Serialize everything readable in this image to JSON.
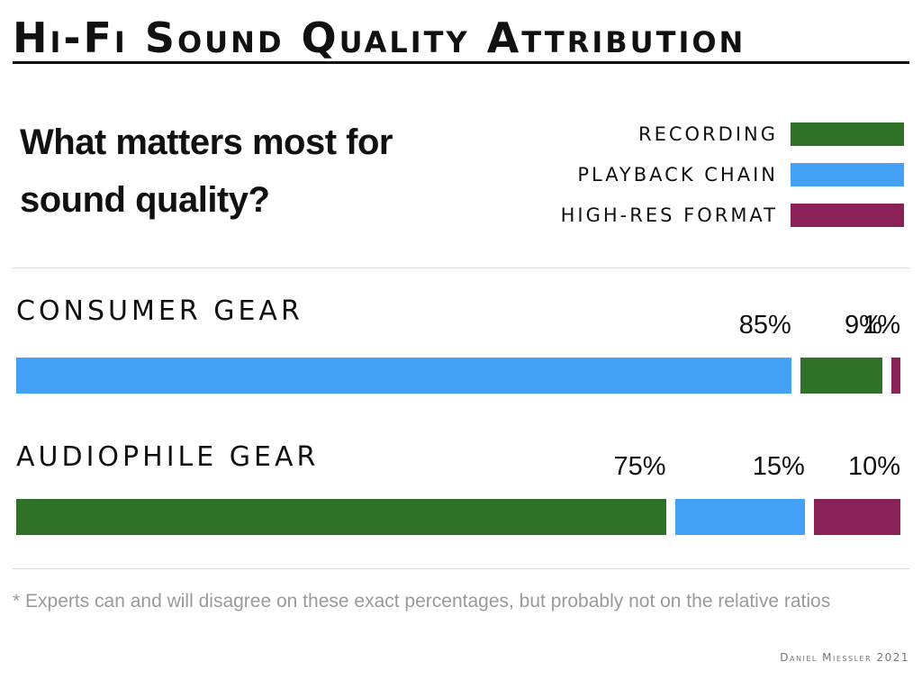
{
  "header": {
    "title": "Hi-Fi Sound Quality Attribution"
  },
  "question": "What matters most for sound quality?",
  "colors": {
    "recording": "#2e7127",
    "playback": "#45a1f5",
    "format": "#8b2257"
  },
  "chart_data": {
    "type": "bar",
    "stacked": true,
    "orientation": "horizontal",
    "legend": [
      {
        "name": "RECORDING",
        "color": "#2e7127"
      },
      {
        "name": "PLAYBACK CHAIN",
        "color": "#45a1f5"
      },
      {
        "name": "HIGH-RES FORMAT",
        "color": "#8b2257"
      }
    ],
    "legend_position": "top-right",
    "groups": [
      {
        "name": "CONSUMER GEAR",
        "segments": [
          {
            "series": "PLAYBACK CHAIN",
            "value": 85,
            "label": "85%",
            "color": "#45a1f5"
          },
          {
            "series": "RECORDING",
            "value": 9,
            "label": "9%",
            "color": "#2e7127"
          },
          {
            "series": "HIGH-RES FORMAT",
            "value": 1,
            "label": "1%",
            "color": "#8b2257"
          }
        ]
      },
      {
        "name": "AUDIOPHILE GEAR",
        "segments": [
          {
            "series": "RECORDING",
            "value": 75,
            "label": "75%",
            "color": "#2e7127"
          },
          {
            "series": "PLAYBACK CHAIN",
            "value": 15,
            "label": "15%",
            "color": "#45a1f5"
          },
          {
            "series": "HIGH-RES FORMAT",
            "value": 10,
            "label": "10%",
            "color": "#8b2257"
          }
        ]
      }
    ],
    "grid": false
  },
  "footnote": "* Experts can and will disagree on these exact percentages, but probably not on the relative ratios",
  "credit": "Daniel Miessler 2021"
}
